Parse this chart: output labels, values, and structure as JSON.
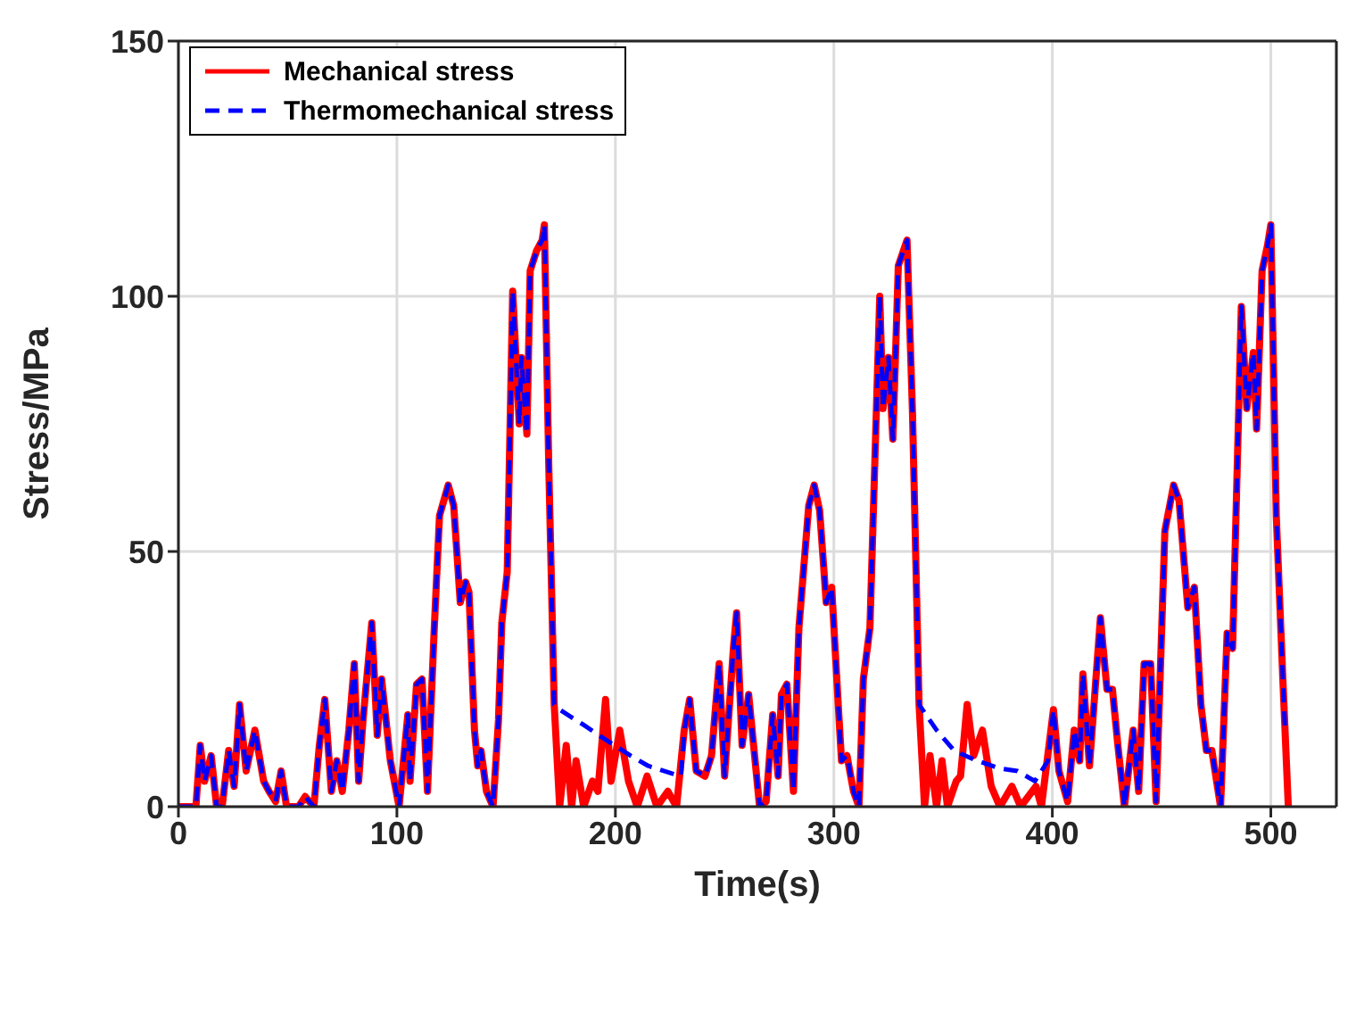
{
  "chart_data": {
    "type": "line",
    "xlabel": "Time(s)",
    "ylabel": "Stress/MPa",
    "xlim": [
      0,
      530
    ],
    "ylim": [
      0,
      150
    ],
    "xticks": [
      0,
      100,
      200,
      300,
      400,
      500
    ],
    "yticks": [
      0,
      50,
      100,
      150
    ],
    "grid": true,
    "legend": "top left",
    "marker": "none",
    "series": [
      {
        "name": "Mechanical stress",
        "color": "#ff0000",
        "line_style": "solid",
        "x": [
          0,
          8,
          10,
          12,
          15,
          17.5,
          20,
          23,
          25.5,
          28,
          31,
          35,
          39,
          41.5,
          44.5,
          47,
          49.5,
          55,
          58,
          62,
          64.5,
          67,
          70,
          72.5,
          75,
          78,
          80.5,
          82.5,
          84.5,
          88.5,
          91,
          93,
          97,
          101,
          105,
          106,
          109,
          111.5,
          114,
          117,
          119.5,
          123.5,
          126,
          129,
          131.5,
          133,
          135.5,
          137,
          138.5,
          141,
          144,
          146.5,
          148,
          150.5,
          153,
          156,
          157,
          159.5,
          161,
          164,
          166.5,
          167.5,
          169.5,
          172,
          174.5,
          177.5,
          180,
          182,
          185.5,
          189.5,
          192,
          195.5,
          198,
          202,
          206,
          210,
          214.5,
          219,
          224,
          228,
          231.5,
          234,
          237,
          241,
          244,
          247.5,
          250,
          254,
          255.5,
          258,
          261,
          263.5,
          266,
          269,
          272,
          274.5,
          276,
          278.5,
          281.5,
          284,
          288.5,
          291,
          293.5,
          296.5,
          299,
          302,
          303.5,
          306,
          309,
          311.5,
          313.5,
          316.5,
          321,
          322.5,
          325,
          327,
          329.5,
          333.5,
          336,
          339,
          341.5,
          344,
          347,
          349.5,
          352,
          356,
          358,
          361,
          364,
          368,
          372,
          376,
          381.5,
          385.5,
          392.5,
          395,
          400.5,
          403,
          407,
          410,
          412.5,
          414,
          417,
          422,
          425,
          427.5,
          430,
          433,
          437,
          439.5,
          442,
          445,
          447.5,
          451.5,
          455.5,
          458,
          462,
          465,
          468,
          470.5,
          473,
          477,
          480,
          482.5,
          486.5,
          489,
          492,
          493.5,
          496,
          498.5,
          500,
          502.5,
          505.5,
          508
        ],
        "values": [
          0,
          0,
          12,
          5,
          10,
          0,
          0,
          11,
          4,
          20,
          7,
          15,
          5,
          3,
          1,
          7,
          0,
          0,
          2,
          0,
          12,
          21,
          3,
          9,
          3,
          15,
          28,
          5,
          17,
          36,
          14,
          25,
          9,
          0,
          18,
          5,
          24,
          25,
          3,
          34,
          57,
          63,
          59,
          40,
          44,
          42,
          15,
          8,
          11,
          3,
          0,
          17,
          36,
          46,
          101,
          75,
          88,
          73,
          105,
          109,
          111,
          114,
          67,
          20,
          0,
          12,
          0,
          9,
          0,
          5,
          3,
          21,
          5,
          15,
          5,
          0,
          6,
          0,
          3,
          0,
          15,
          21,
          7,
          6,
          10,
          28,
          6,
          31,
          38,
          12,
          22,
          11,
          0,
          1,
          18,
          6,
          22,
          24,
          3,
          35,
          59,
          63,
          58,
          40,
          43,
          20,
          9,
          10,
          3,
          0,
          25,
          35,
          100,
          78,
          88,
          72,
          106,
          111,
          77,
          20,
          0,
          10,
          0,
          9,
          0,
          5,
          6,
          20,
          10,
          15,
          4,
          0,
          4,
          0,
          4,
          0,
          19,
          7,
          1,
          15,
          9,
          26,
          8,
          37,
          23,
          23,
          12,
          0,
          15,
          3,
          28,
          28,
          1,
          54,
          63,
          60,
          39,
          43,
          20,
          11,
          11,
          0,
          34,
          31,
          98,
          78,
          89,
          74,
          105,
          110,
          114,
          57,
          25,
          0
        ]
      },
      {
        "name": "Thermomechanical stress",
        "color": "#0000ff",
        "line_style": "dashed",
        "x": [
          0,
          8,
          10,
          12,
          15,
          17.5,
          20,
          23,
          25.5,
          28,
          31,
          35,
          39,
          41.5,
          44.5,
          47,
          49.5,
          55,
          58,
          62,
          64.5,
          67,
          70,
          72.5,
          75,
          78,
          80.5,
          82.5,
          84.5,
          88.5,
          91,
          93,
          97,
          101,
          105,
          106,
          109,
          111.5,
          114,
          117,
          119.5,
          123.5,
          126,
          129,
          131.5,
          133,
          135.5,
          137,
          138.5,
          141,
          144,
          146.5,
          148,
          150.5,
          153,
          156,
          157,
          159.5,
          161,
          164,
          166.5,
          167.5,
          169.5,
          172,
          174.5,
          185.5,
          196,
          207,
          215,
          226,
          230,
          231.5,
          234,
          237,
          241,
          244,
          247.5,
          250,
          254,
          255.5,
          258,
          261,
          263.5,
          266,
          269,
          272,
          274.5,
          276,
          278.5,
          281.5,
          284,
          288.5,
          291,
          293.5,
          296.5,
          299,
          302,
          303.5,
          306,
          309,
          311.5,
          313.5,
          316.5,
          321,
          322.5,
          325,
          327,
          329.5,
          333.5,
          336,
          339,
          347,
          355,
          365.5,
          376,
          384,
          392,
          398,
          400.5,
          403,
          407,
          410,
          412.5,
          414,
          417,
          422,
          425,
          427.5,
          430,
          433,
          437,
          439.5,
          442,
          445,
          447.5,
          451.5,
          455.5,
          458,
          462,
          465,
          468,
          470.5,
          473,
          477,
          480,
          482.5,
          486.5,
          489,
          492,
          493.5,
          496,
          498.5,
          500,
          502.5,
          505.5,
          506.5
        ],
        "values": [
          0,
          0,
          12,
          5,
          10,
          0,
          0,
          11,
          4,
          20,
          7,
          15,
          5,
          3,
          1,
          7,
          0,
          0,
          2,
          0,
          12,
          21,
          3,
          9,
          3,
          15,
          28,
          5,
          17,
          36,
          14,
          25,
          9,
          0,
          18,
          5,
          24,
          25,
          3,
          34,
          57,
          63,
          59,
          40,
          44,
          42,
          15,
          8,
          11,
          3,
          0,
          17,
          36,
          46,
          101,
          75,
          88,
          73,
          105,
          109,
          111,
          114,
          67,
          20,
          19,
          16,
          13,
          10,
          8,
          6.5,
          6,
          15,
          21,
          7,
          6,
          10,
          28,
          6,
          31,
          38,
          12,
          22,
          11,
          0,
          1,
          18,
          6,
          22,
          24,
          3,
          35,
          59,
          63,
          58,
          40,
          43,
          20,
          9,
          10,
          3,
          0,
          25,
          35,
          100,
          78,
          88,
          72,
          106,
          111,
          77,
          20,
          15,
          11,
          9,
          7.5,
          7,
          5,
          9,
          19,
          7,
          1,
          15,
          9,
          26,
          8,
          37,
          23,
          23,
          12,
          0,
          15,
          3,
          28,
          28,
          1,
          54,
          63,
          60,
          39,
          43,
          20,
          11,
          11,
          0,
          34,
          31,
          98,
          78,
          89,
          74,
          105,
          110,
          114,
          57,
          25,
          15
        ]
      }
    ]
  }
}
